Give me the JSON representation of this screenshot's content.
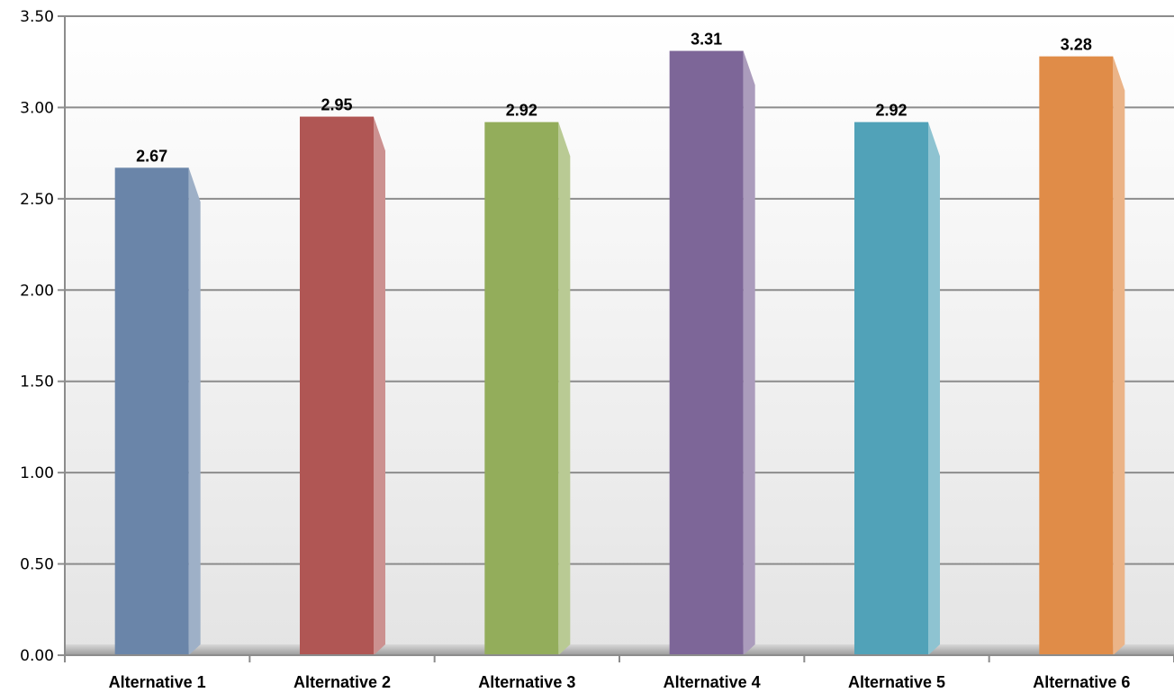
{
  "chart_data": {
    "type": "bar",
    "title": "",
    "xlabel": "",
    "ylabel": "",
    "categories": [
      "Alternative 1",
      "Alternative 2",
      "Alternative 3",
      "Alternative 4",
      "Alternative 5",
      "Alternative 6"
    ],
    "values": [
      2.67,
      2.95,
      2.92,
      3.31,
      2.92,
      3.28
    ],
    "data_labels": [
      "2.67",
      "2.95",
      "2.92",
      "3.31",
      "2.92",
      "3.28"
    ],
    "ylim": [
      0,
      3.5
    ],
    "yticks": [
      0,
      0.5,
      1,
      1.5,
      2,
      2.5,
      3,
      3.5
    ],
    "ytick_labels": [
      "0.00",
      "0.50",
      "1.00",
      "1.50",
      "2.00",
      "2.50",
      "3.00",
      "3.50"
    ],
    "grid": true,
    "legend": "none",
    "colors": [
      "#6a85a9",
      "#b05654",
      "#93ad5b",
      "#7d6698",
      "#51a2b8",
      "#e08c48"
    ]
  }
}
